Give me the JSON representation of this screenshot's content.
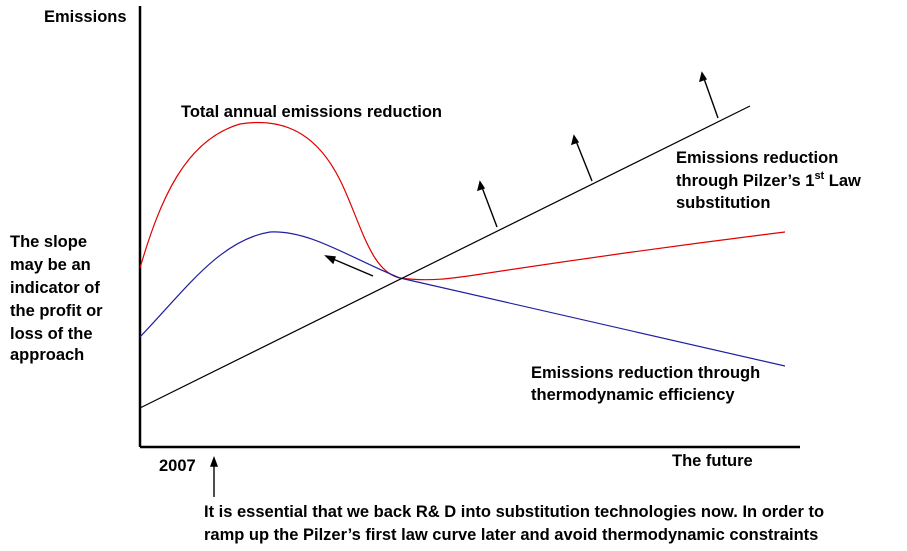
{
  "axes": {
    "y_label": "Emissions",
    "x_start_label": "2007",
    "x_end_label": "The future"
  },
  "curves": {
    "total": {
      "label": "Total annual emissions reduction",
      "color": "#e00000"
    },
    "substitution": {
      "label_line1": "Emissions reduction",
      "label_line2_pre": "through Pilzer’s 1",
      "label_line2_sup": "st",
      "label_line2_post": " Law",
      "label_line3": "substitution",
      "color": "#000000"
    },
    "efficiency": {
      "label_line1": "Emissions reduction through",
      "label_line2": "thermodynamic efficiency",
      "color": "#2020a0"
    }
  },
  "side_note": {
    "lines": [
      "The slope",
      "may be an",
      "indicator of",
      "the profit or",
      "loss of the",
      "approach"
    ]
  },
  "footnote": {
    "line1": "It is essential that we back R& D into substitution technologies now. In order to",
    "line2": "ramp up the Pilzer’s first law curve later and avoid thermodynamic constraints"
  }
}
